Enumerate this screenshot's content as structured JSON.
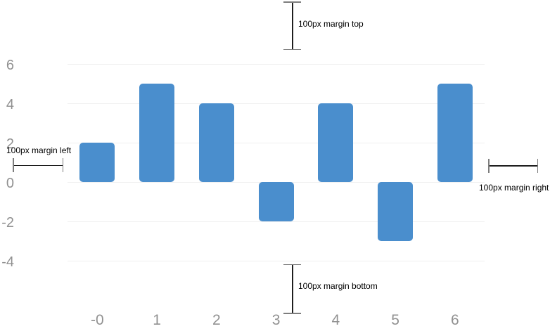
{
  "chart_data": {
    "type": "bar",
    "categories": [
      "-0",
      "1",
      "2",
      "3",
      "4",
      "5",
      "6"
    ],
    "values": [
      2,
      5,
      4,
      -2,
      4,
      -3,
      5
    ],
    "title": "",
    "xlabel": "",
    "ylabel": "",
    "yticks": [
      6,
      4,
      2,
      0,
      -2,
      -4
    ],
    "ylim": [
      -4.2,
      6.9
    ],
    "grid": true,
    "legend": false,
    "bar_color": "#4a8ecd",
    "gridline_color": "#f0f0f0",
    "tick_label_color": "#919191"
  },
  "annotations": {
    "top": "100px margin top",
    "bottom": "100px margin bottom",
    "left": "100px margin left",
    "right": "100px margin right"
  }
}
